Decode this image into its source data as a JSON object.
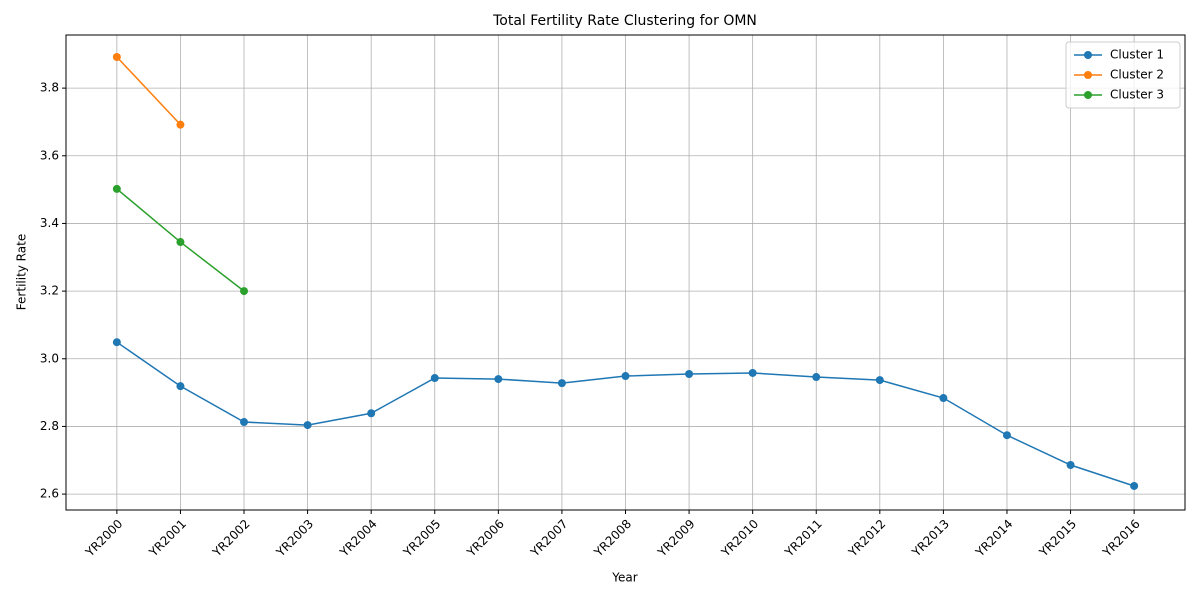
{
  "chart_data": {
    "type": "line",
    "title": "Total Fertility Rate Clustering for OMN",
    "x_label": "Year",
    "y_label": "Fertility Rate",
    "categories": [
      "YR2000",
      "YR2001",
      "YR2002",
      "YR2003",
      "YR2004",
      "YR2005",
      "YR2006",
      "YR2007",
      "YR2008",
      "YR2009",
      "YR2010",
      "YR2011",
      "YR2012",
      "YR2013",
      "YR2014",
      "YR2015",
      "YR2016"
    ],
    "series": [
      {
        "name": "Cluster 1",
        "color": "#1f77b4",
        "values": [
          3.049,
          2.919,
          2.813,
          2.804,
          2.839,
          2.943,
          2.94,
          2.928,
          2.949,
          2.955,
          2.958,
          2.946,
          2.937,
          2.884,
          2.774,
          2.686,
          2.624
        ]
      },
      {
        "name": "Cluster 2",
        "color": "#ff7f0e",
        "values": [
          3.892,
          3.692,
          null,
          null,
          null,
          null,
          null,
          null,
          null,
          null,
          null,
          null,
          null,
          null,
          null,
          null,
          null
        ]
      },
      {
        "name": "Cluster 3",
        "color": "#2ca02c",
        "values": [
          3.502,
          3.345,
          3.2,
          null,
          null,
          null,
          null,
          null,
          null,
          null,
          null,
          null,
          null,
          null,
          null,
          null,
          null
        ]
      }
    ],
    "ylim": [
      2.553,
      3.957
    ],
    "yticks": [
      2.6,
      2.8,
      {
        "value": 3,
        "label": "3.0"
      },
      3.2,
      3.4,
      3.6,
      3.8
    ],
    "grid": true,
    "legend": "upper right"
  }
}
